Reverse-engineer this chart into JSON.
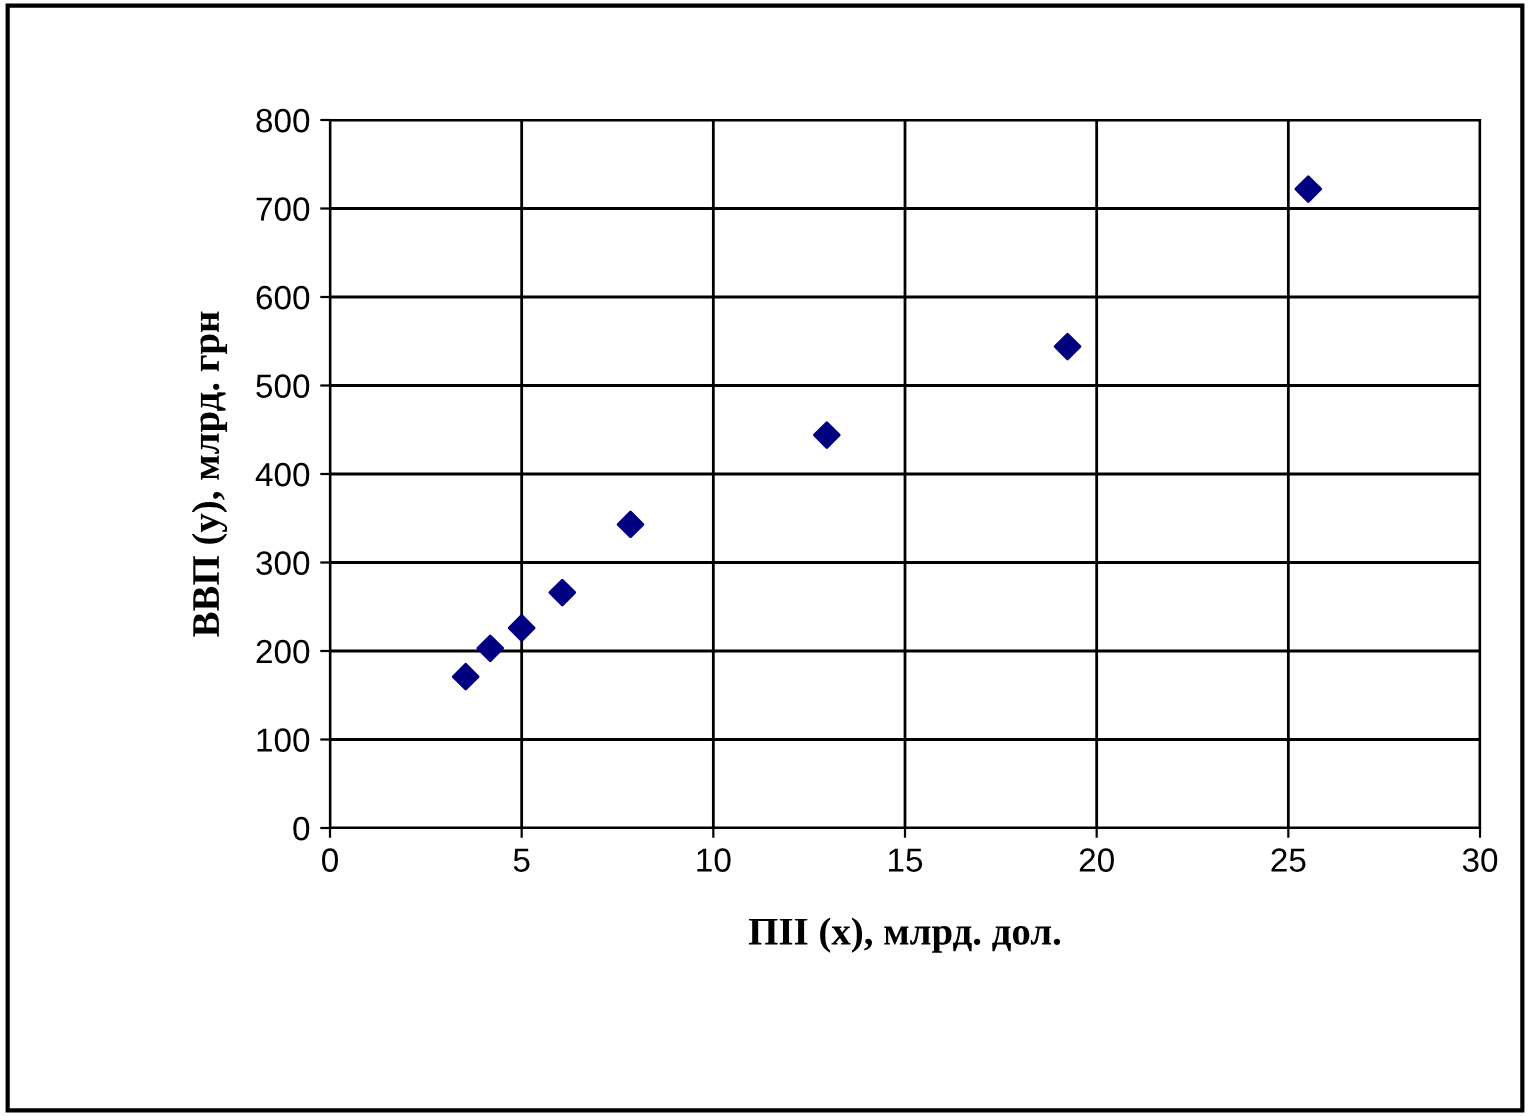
{
  "chart_data": {
    "type": "scatter",
    "xlabel": "ПІІ (х), млрд. дол.",
    "ylabel": "ВВП (у), млрд. грн",
    "x": [
      3.54,
      4.18,
      5.0,
      6.06,
      7.84,
      12.96,
      19.24,
      25.52
    ],
    "values": [
      171,
      203,
      226,
      266,
      343,
      444,
      544,
      722
    ],
    "color": "#000080",
    "marker": "diamond",
    "xlim": [
      0,
      30
    ],
    "xticks": [
      0,
      5,
      10,
      15,
      20,
      25,
      30
    ],
    "ylim": [
      0,
      800
    ],
    "yticks": [
      0,
      100,
      200,
      300,
      400,
      500,
      600,
      700,
      800
    ],
    "grid": true
  }
}
